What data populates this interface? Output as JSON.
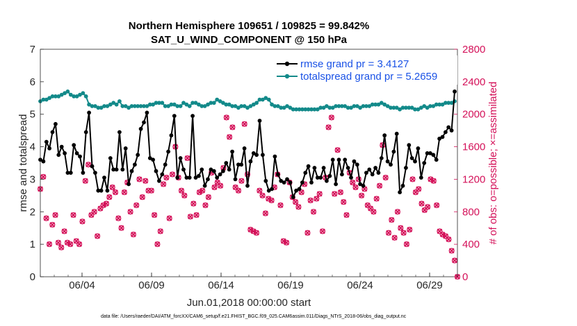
{
  "chart_data": {
    "type": "line",
    "title_line1": "Northern Hemisphere 109651 / 109825 = 99.842%",
    "title_line2": "SAT_U_WIND_COMPONENT @ 150 hPa",
    "xlabel": "Jun.01,2018 00:00:00 start",
    "ylabel_left": "rmse and totalspread",
    "ylabel_right": "# of obs: o=possible; ×=assimilated",
    "footnote": "data file: /Users/raeder/DAI/ATM_forcXX/CAM6_setup/f.e21.FHIST_BGC.f09_025.CAM6assim.011/Diags_NTrS_2018-06/obs_diag_output.nc",
    "x_range_days": [
      1.0,
      31.0
    ],
    "left_ylim": [
      0,
      7
    ],
    "left_yticks": [
      "0",
      "1",
      "2",
      "3",
      "4",
      "5",
      "6",
      "7"
    ],
    "right_ylim": [
      0,
      2800
    ],
    "right_yticks": [
      "0",
      "400",
      "800",
      "1200",
      "1600",
      "2000",
      "2400",
      "2800"
    ],
    "x_ticks": [
      {
        "day": 4,
        "label": "06/04"
      },
      {
        "day": 9,
        "label": "06/09"
      },
      {
        "day": 14,
        "label": "06/14"
      },
      {
        "day": 19,
        "label": "06/19"
      },
      {
        "day": 24,
        "label": "06/24"
      },
      {
        "day": 29,
        "label": "06/29"
      }
    ],
    "colors": {
      "rmse": "#000000",
      "spread": "#138a8a",
      "obs": "#d41159",
      "legend_text": "#1a52e6"
    },
    "series": [
      {
        "name": "rmse grand pr = 3.4127",
        "axis": "left",
        "marker": "circle",
        "values": [
          3.6,
          3.55,
          4.15,
          3.95,
          4.45,
          4.7,
          3.75,
          4.0,
          3.8,
          3.2,
          3.2,
          4.05,
          3.8,
          3.7,
          3.2,
          4.45,
          5.05,
          3.4,
          3.2,
          2.65,
          2.65,
          3.05,
          2.65,
          3.65,
          3.3,
          3.3,
          4.45,
          3.3,
          3.95,
          2.85,
          3.25,
          3.45,
          3.75,
          4.55,
          4.75,
          5.05,
          3.65,
          3.6,
          3.25,
          2.95,
          3.15,
          3.45,
          3.85,
          4.35,
          4.95,
          3.05,
          3.65,
          3.3,
          3.05,
          3.05,
          4.95,
          3.05,
          3.1,
          3.3,
          2.8,
          3.0,
          3.3,
          3.25,
          3.05,
          3.15,
          3.25,
          3.5,
          3.3,
          3.85,
          3.0,
          3.45,
          3.45,
          3.95,
          2.8,
          3.55,
          3.8,
          3.75,
          4.8,
          3.75,
          2.95,
          2.65,
          2.7,
          3.7,
          3.15,
          2.95,
          2.9,
          3.0,
          2.9,
          2.45,
          2.65,
          2.7,
          2.9,
          3.2,
          3.4,
          2.9,
          3.35,
          3.05,
          3.05,
          3.35,
          2.95,
          3.1,
          3.6,
          2.85,
          3.6,
          3.15,
          3.6,
          3.35,
          3.05,
          3.55,
          3.45,
          2.85,
          2.8,
          3.2,
          3.3,
          3.15,
          3.35,
          3.2,
          3.65,
          4.35,
          3.55,
          3.45,
          3.85,
          4.4,
          2.6,
          2.8,
          3.35,
          4.05,
          3.65,
          3.55,
          3.95,
          3.05,
          3.5,
          3.8,
          3.8,
          3.75,
          3.6,
          4.25,
          4.3,
          4.45,
          4.6,
          4.5,
          5.7
        ]
      },
      {
        "name": "totalspread grand pr = 5.2659",
        "axis": "left",
        "marker": "circle",
        "values": [
          5.4,
          5.45,
          5.45,
          5.5,
          5.55,
          5.55,
          5.55,
          5.6,
          5.65,
          5.7,
          5.6,
          5.55,
          5.55,
          5.6,
          5.65,
          5.55,
          5.3,
          5.25,
          5.25,
          5.2,
          5.2,
          5.25,
          5.25,
          5.3,
          5.35,
          5.3,
          5.4,
          5.25,
          5.25,
          5.2,
          5.25,
          5.25,
          5.25,
          5.25,
          5.25,
          5.25,
          5.3,
          5.3,
          5.35,
          5.35,
          5.35,
          5.25,
          5.25,
          5.3,
          5.3,
          5.25,
          5.25,
          5.35,
          5.3,
          5.25,
          5.35,
          5.35,
          5.3,
          5.25,
          5.25,
          5.3,
          5.35,
          5.35,
          5.45,
          5.4,
          5.35,
          5.3,
          5.3,
          5.25,
          5.25,
          5.2,
          5.25,
          5.25,
          5.2,
          5.25,
          5.3,
          5.35,
          5.45,
          5.45,
          5.5,
          5.45,
          5.3,
          5.25,
          5.25,
          5.2,
          5.2,
          5.25,
          5.2,
          5.15,
          5.15,
          5.15,
          5.15,
          5.15,
          5.15,
          5.15,
          5.15,
          5.15,
          5.2,
          5.2,
          5.25,
          5.2,
          5.2,
          5.25,
          5.25,
          5.25,
          5.25,
          5.2,
          5.2,
          5.25,
          5.25,
          5.2,
          5.25,
          5.25,
          5.25,
          5.3,
          5.3,
          5.3,
          5.35,
          5.3,
          5.25,
          5.2,
          5.2,
          5.2,
          5.15,
          5.2,
          5.2,
          5.2,
          5.2,
          5.15,
          5.15,
          5.2,
          5.25,
          5.2,
          5.25,
          5.25,
          5.3,
          5.3,
          5.3,
          5.35,
          5.35,
          5.35,
          5.4
        ]
      },
      {
        "name": "obs possible",
        "axis": "right",
        "marker": "circle-open",
        "values": [
          1080,
          1230,
          720,
          400,
          640,
          760,
          420,
          360,
          560,
          420,
          400,
          760,
          440,
          400,
          680,
          1180,
          1380,
          760,
          800,
          500,
          840,
          880,
          900,
          980,
          1100,
          1040,
          720,
          600,
          1040,
          1160,
          800,
          520,
          880,
          1200,
          980,
          1180,
          1060,
          1060,
          760,
          400,
          560,
          1140,
          1220,
          720,
          1260,
          1600,
          1220,
          1060,
          1000,
          1460,
          740,
          900,
          760,
          1040,
          1060,
          880,
          980,
          1280,
          1100,
          1160,
          1120,
          1340,
          1960,
          1720,
          1840,
          1100,
          1060,
          1180,
          1880,
          1260,
          580,
          560,
          540,
          1060,
          1000,
          780,
          960,
          940,
          1100,
          1260,
          880,
          440,
          420,
          1160,
          980,
          920,
          860,
          1040,
          1140,
          540,
          940,
          800,
          960,
          1020,
          560,
          1220,
          1840,
          1960,
          1020,
          1560,
          1040,
          920,
          760,
          1280,
          1160,
          1100,
          1200,
          1000,
          1080,
          880,
          840,
          800,
          960,
          1120,
          1620,
          1220,
          540,
          700,
          480,
          800,
          600,
          540,
          400,
          580,
          1200,
          1040,
          1080,
          900,
          820,
          860,
          1200,
          1180,
          880,
          560,
          520,
          500,
          460,
          320,
          200
        ]
      },
      {
        "name": "obs assimilated",
        "axis": "right",
        "marker": "x",
        "values": [
          1080,
          1230,
          720,
          400,
          640,
          760,
          420,
          360,
          560,
          420,
          400,
          760,
          440,
          400,
          680,
          1180,
          1380,
          760,
          800,
          500,
          840,
          880,
          900,
          980,
          1100,
          1040,
          720,
          600,
          1040,
          1160,
          800,
          520,
          880,
          1200,
          980,
          1180,
          1060,
          1060,
          760,
          400,
          560,
          1140,
          1220,
          720,
          1260,
          1600,
          1220,
          1060,
          1000,
          1460,
          740,
          900,
          760,
          1040,
          1060,
          880,
          980,
          1280,
          1100,
          1160,
          1120,
          1340,
          1960,
          1720,
          1840,
          1100,
          1060,
          1180,
          1880,
          1260,
          580,
          560,
          540,
          1060,
          1000,
          780,
          960,
          940,
          1100,
          1260,
          880,
          440,
          420,
          1160,
          980,
          920,
          860,
          1040,
          1140,
          540,
          940,
          800,
          960,
          1020,
          560,
          1220,
          1840,
          1960,
          1020,
          1560,
          1040,
          920,
          760,
          1280,
          1160,
          1100,
          1200,
          1000,
          1080,
          880,
          840,
          800,
          960,
          1120,
          1620,
          1220,
          540,
          700,
          480,
          800,
          600,
          540,
          400,
          580,
          1200,
          1040,
          1080,
          900,
          820,
          860,
          1200,
          1180,
          880,
          560,
          520,
          500,
          460,
          320,
          200
        ]
      }
    ],
    "extra_points": [
      {
        "series": "obs possible",
        "day": 31.0,
        "value": 0
      },
      {
        "series": "obs assimilated",
        "day": 31.0,
        "value": 0
      }
    ],
    "legend": {
      "placement": "top-right",
      "entries": [
        "rmse grand pr = 3.4127",
        "totalspread grand pr = 5.2659"
      ]
    }
  }
}
